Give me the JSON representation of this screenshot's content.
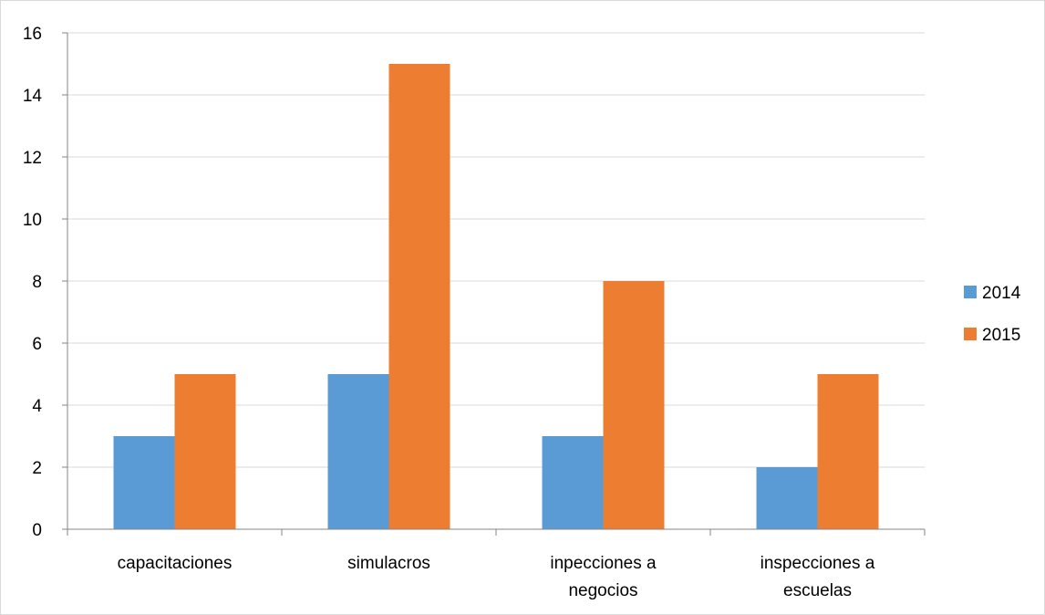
{
  "chart_data": {
    "type": "bar",
    "categories": [
      [
        "capacitaciones"
      ],
      [
        "simulacros"
      ],
      [
        "inpecciones a",
        "negocios"
      ],
      [
        "inspecciones a",
        "escuelas"
      ]
    ],
    "series": [
      {
        "name": "2014",
        "color": "#5b9bd5",
        "values": [
          3,
          5,
          3,
          2
        ]
      },
      {
        "name": "2015",
        "color": "#ed7d31",
        "values": [
          5,
          15,
          8,
          5
        ]
      }
    ],
    "ylim": [
      0,
      16
    ],
    "yticks": [
      0,
      2,
      4,
      6,
      8,
      10,
      12,
      14,
      16
    ],
    "grid": true,
    "legend": "right"
  }
}
